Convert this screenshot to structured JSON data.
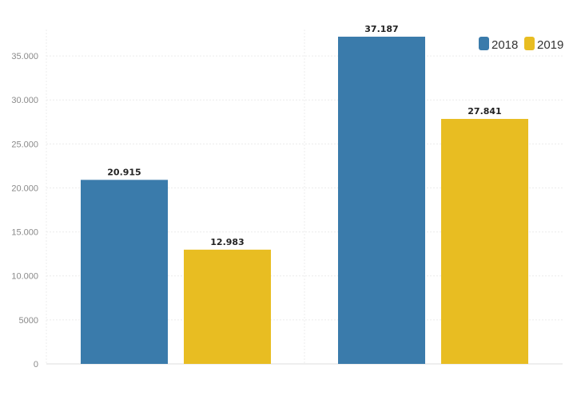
{
  "chart_data": {
    "type": "bar",
    "title": "",
    "xlabel": "",
    "ylabel": "",
    "categories": [
      "",
      ""
    ],
    "series": [
      {
        "name": "2018",
        "values": [
          20915,
          37187
        ],
        "labels": [
          "20.915",
          "37.187"
        ],
        "color": "#3a7bab"
      },
      {
        "name": "2019",
        "values": [
          12983,
          27841
        ],
        "labels": [
          "12.983",
          "27.841"
        ],
        "color": "#e8bd22"
      }
    ],
    "ylim": [
      0,
      38000
    ],
    "yticks": [
      0,
      5000,
      10000,
      15000,
      20000,
      25000,
      30000,
      35000
    ],
    "ytick_labels": [
      "0",
      "5000",
      "10.000",
      "15.000",
      "20.000",
      "25.000",
      "30.000",
      "35.000"
    ],
    "grid": true,
    "legend": "top-right"
  }
}
